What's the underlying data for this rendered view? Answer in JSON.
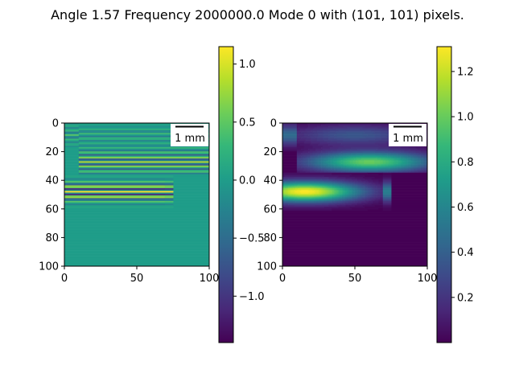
{
  "figure": {
    "title": "Angle 1.57 Frequency 2000000.0 Mode 0 with (101, 101) pixels."
  },
  "chart_data": [
    {
      "type": "heatmap",
      "name": "left-field-image",
      "shape": [
        101,
        101
      ],
      "colormap": "viridis",
      "xlim": [
        0,
        100
      ],
      "ylim": [
        100,
        0
      ],
      "xticks": [
        0,
        50,
        100
      ],
      "yticks": [
        0,
        20,
        40,
        60,
        80,
        100
      ],
      "color_range": [
        -1.4,
        1.15
      ],
      "colorbar_ticks": [
        -1.0,
        -0.5,
        0.0,
        0.5,
        1.0
      ],
      "colorbar_tick_labels": [
        "−1.0",
        "−0.5",
        "0.0",
        "0.5",
        "1.0"
      ],
      "scalebar_label": "1 mm",
      "regions": [
        {
          "rows": [
            0,
            37
          ],
          "cols": [
            10,
            100
          ],
          "pattern": "bands-upper"
        },
        {
          "rows": [
            0,
            37
          ],
          "cols": [
            0,
            10
          ],
          "pattern": "bands-top"
        },
        {
          "rows": [
            37,
            58
          ],
          "cols": [
            0,
            76
          ],
          "pattern": "bands-lower"
        }
      ]
    },
    {
      "type": "heatmap",
      "name": "right-amplitude-image",
      "shape": [
        101,
        101
      ],
      "colormap": "viridis",
      "xlim": [
        0,
        100
      ],
      "ylim": [
        100,
        0
      ],
      "xticks": [
        0,
        50,
        100
      ],
      "yticks": [
        0,
        20,
        40,
        60,
        80,
        100
      ],
      "color_range": [
        0.0,
        1.31
      ],
      "colorbar_ticks": [
        0.2,
        0.4,
        0.6,
        0.8,
        1.0,
        1.2
      ],
      "colorbar_tick_labels": [
        "0.2",
        "0.4",
        "0.6",
        "0.8",
        "1.0",
        "1.2"
      ],
      "scalebar_label": "1 mm",
      "regions": [
        {
          "rows": [
            0,
            35
          ],
          "cols": [
            10,
            100
          ],
          "peak": 1.0,
          "center": [
            27,
            60
          ]
        },
        {
          "rows": [
            0,
            20
          ],
          "cols": [
            0,
            10
          ],
          "peak": 0.45,
          "center": [
            8,
            5
          ]
        },
        {
          "rows": [
            35,
            62
          ],
          "cols": [
            0,
            76
          ],
          "peak": 1.31,
          "center": [
            48,
            15
          ]
        }
      ]
    }
  ],
  "colors": {
    "viridis_stops": [
      "#440154",
      "#482878",
      "#3e4989",
      "#31688e",
      "#26828e",
      "#1f9e89",
      "#35b779",
      "#6ece58",
      "#b5de2b",
      "#fde725"
    ],
    "background": "#21908d",
    "axis": "#000000"
  }
}
